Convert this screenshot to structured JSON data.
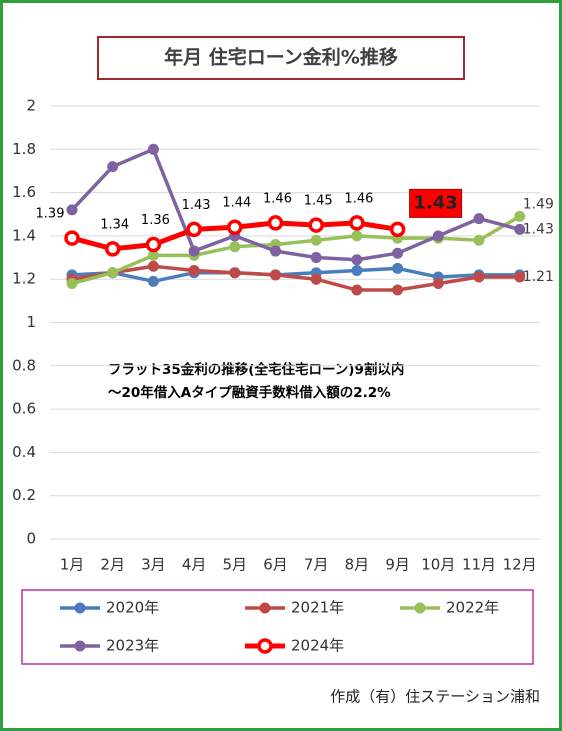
{
  "chart_data": {
    "type": "line",
    "title": "年月 住宅ローン金利%推移",
    "annotations": [
      "フラット35金利の推移(全宅住宅ローン)9割以内",
      "～20年借入Aタイプ融資手数料借入額の2.2%"
    ],
    "credit": "作成（有）住ステーション浦和",
    "categories": [
      "1月",
      "2月",
      "3月",
      "4月",
      "5月",
      "6月",
      "7月",
      "8月",
      "9月",
      "10月",
      "11月",
      "12月"
    ],
    "ylim": [
      0,
      2
    ],
    "yticks": [
      0,
      0.2,
      0.4,
      0.6,
      0.8,
      1,
      1.2,
      1.4,
      1.6,
      1.8,
      2
    ],
    "grid": true,
    "series": [
      {
        "name": "2020年",
        "color": "#4a7ebb",
        "values": [
          1.22,
          1.23,
          1.19,
          1.23,
          1.23,
          1.22,
          1.23,
          1.24,
          1.25,
          1.21,
          1.22,
          1.22
        ]
      },
      {
        "name": "2021年",
        "color": "#be4b48",
        "values": [
          1.2,
          1.23,
          1.26,
          1.24,
          1.23,
          1.22,
          1.2,
          1.15,
          1.15,
          1.18,
          1.21,
          1.21
        ],
        "value_labels": [
          null,
          null,
          null,
          null,
          null,
          null,
          null,
          null,
          null,
          null,
          null,
          "1.21"
        ]
      },
      {
        "name": "2022年",
        "color": "#98c05a",
        "values": [
          1.18,
          1.23,
          1.31,
          1.31,
          1.35,
          1.36,
          1.38,
          1.4,
          1.39,
          1.39,
          1.38,
          1.49
        ],
        "value_labels": [
          null,
          null,
          null,
          null,
          null,
          null,
          null,
          null,
          null,
          null,
          null,
          "1.49"
        ]
      },
      {
        "name": "2023年",
        "color": "#7e62a1",
        "values": [
          1.52,
          1.72,
          1.8,
          1.33,
          1.4,
          1.33,
          1.3,
          1.29,
          1.32,
          1.4,
          1.48,
          1.43
        ],
        "value_labels": [
          null,
          null,
          null,
          null,
          null,
          null,
          null,
          null,
          null,
          null,
          null,
          "1.43"
        ]
      },
      {
        "name": "2024年",
        "color": "#ff0000",
        "values": [
          1.39,
          1.34,
          1.36,
          1.43,
          1.44,
          1.46,
          1.45,
          1.46,
          1.43,
          null,
          null,
          null
        ],
        "value_labels": [
          "1.39",
          "1.34",
          "1.36",
          "1.43",
          "1.44",
          "1.46",
          "1.45",
          "1.46",
          "1.43",
          null,
          null,
          null
        ]
      }
    ]
  }
}
